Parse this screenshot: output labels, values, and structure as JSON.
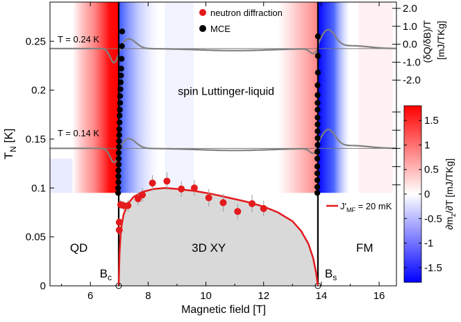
{
  "chart_data": {
    "type": "scatter",
    "xlabel": "Magnetic field [T]",
    "ylabel": "T_N [K]",
    "ylabel_main": "T",
    "ylabel_sub": "N",
    "ylabel_units": " [K]",
    "xlim": [
      4.6,
      16.6
    ],
    "ylim": [
      0,
      0.29
    ],
    "x_ticks": [
      6,
      8,
      10,
      12,
      14,
      16
    ],
    "x_tick_labels": [
      "6",
      "8",
      "10",
      "12",
      "14",
      "16"
    ],
    "y_ticks": [
      0,
      0.05,
      0.1,
      0.15,
      0.2,
      0.25
    ],
    "y_tick_labels": [
      "0",
      "0.05",
      "0.1",
      "0.15",
      "0.2",
      "0.25"
    ],
    "legend": [
      {
        "name": "neutron diffraction",
        "color": "#e41a1c"
      },
      {
        "name": "MCE",
        "color": "#000000"
      }
    ],
    "fit_legend": {
      "prefix": "J'",
      "sub": "MF",
      "suffix": " = 20 mK",
      "color": "#e41a1c"
    },
    "critical_fields": {
      "Bc": 6.98,
      "Bs": 13.88
    },
    "critical_labels": [
      {
        "main": "B",
        "sub": "c",
        "x": 6.98
      },
      {
        "main": "B",
        "sub": "s",
        "x": 13.88
      }
    ],
    "regions": [
      {
        "label": "QD",
        "x": 5.6,
        "y": 0.035
      },
      {
        "label": "3D XY",
        "x": 10.1,
        "y": 0.035
      },
      {
        "label": "FM",
        "x": 15.5,
        "y": 0.035
      },
      {
        "label": "spin Luttinger-liquid",
        "x": 10.7,
        "y": 0.195
      }
    ],
    "neutron_diffraction": {
      "x": [
        7.0,
        7.0,
        7.05,
        7.15,
        7.3,
        7.65,
        7.8,
        8.15,
        8.65,
        9.15,
        9.6,
        10.1,
        10.6,
        11.1,
        11.6,
        12.0
      ],
      "y": [
        0.057,
        0.065,
        0.083,
        0.082,
        0.082,
        0.089,
        0.093,
        0.105,
        0.107,
        0.099,
        0.1,
        0.09,
        0.085,
        0.076,
        0.084,
        0.079
      ],
      "yerr": [
        0.004,
        0.004,
        0.005,
        0.005,
        0.006,
        0.007,
        0.007,
        0.008,
        0.009,
        0.008,
        0.008,
        0.009,
        0.009,
        0.008,
        0.009,
        0.008
      ]
    },
    "mce_left": {
      "x": [
        6.96,
        6.96,
        6.97,
        6.97,
        6.97,
        6.98,
        6.98,
        6.98,
        6.99,
        6.99,
        7.0,
        7.0,
        7.01,
        7.01,
        7.02,
        7.03,
        7.03,
        7.04,
        7.05,
        7.06,
        7.07,
        7.08,
        7.09,
        7.1
      ],
      "y": [
        0.095,
        0.1,
        0.106,
        0.112,
        0.118,
        0.124,
        0.13,
        0.136,
        0.142,
        0.148,
        0.154,
        0.16,
        0.167,
        0.174,
        0.18,
        0.187,
        0.194,
        0.201,
        0.208,
        0.215,
        0.222,
        0.232,
        0.245,
        0.26
      ]
    },
    "mce_right": {
      "x": [
        13.86,
        13.86,
        13.86,
        13.86,
        13.86,
        13.86,
        13.86,
        13.87,
        13.87,
        13.87,
        13.87,
        13.87,
        13.87,
        13.87,
        13.87,
        13.87,
        13.88,
        13.88,
        13.88
      ],
      "y": [
        0.095,
        0.101,
        0.108,
        0.115,
        0.122,
        0.13,
        0.137,
        0.144,
        0.151,
        0.158,
        0.165,
        0.172,
        0.18,
        0.187,
        0.195,
        0.205,
        0.218,
        0.235,
        0.255
      ]
    },
    "mf_phase_boundary": {
      "x": [
        6.98,
        7.01,
        7.06,
        7.15,
        7.3,
        7.5,
        7.8,
        8.2,
        8.6,
        9.0,
        9.6,
        10.2,
        10.8,
        11.4,
        12.0,
        12.5,
        13.0,
        13.3,
        13.55,
        13.72,
        13.82,
        13.88
      ],
      "y": [
        0.0,
        0.034,
        0.058,
        0.073,
        0.084,
        0.091,
        0.096,
        0.099,
        0.1,
        0.099,
        0.097,
        0.094,
        0.09,
        0.086,
        0.081,
        0.075,
        0.066,
        0.056,
        0.043,
        0.028,
        0.013,
        0.0
      ]
    },
    "mce_trace_label_top": "T = 0.24 K",
    "mce_trace_label_bottom": "T = 0.14 K",
    "right_axis_top": {
      "label": "(δQ/δB)/T [mJ/TKg]",
      "label_line1": "(δQ/δB)/T",
      "label_line2": "[mJ/TKg]",
      "ticks": [
        2.0,
        1.0,
        0.0,
        -1.0,
        -2.0
      ],
      "tick_labels": [
        "2.0",
        "1.0",
        "0.0",
        "-1.0",
        "-2.0"
      ]
    },
    "colorbar": {
      "label": "∂m_z/∂T [mJ/TKg]",
      "label_main_a": "∂m",
      "label_sub": "z",
      "label_main_b": "/∂T [mJ/TKg]",
      "range": [
        -1.8,
        1.8
      ],
      "ticks": [
        1.5,
        1,
        0.5,
        0,
        -0.5,
        -1,
        -1.5
      ],
      "tick_labels": [
        "1.5",
        "1",
        "0.5",
        "0",
        "-0.5",
        "-1",
        "-1.5"
      ],
      "colors": {
        "max": "#ff0000",
        "mid": "#ffffff",
        "min": "#0000ff"
      }
    }
  }
}
